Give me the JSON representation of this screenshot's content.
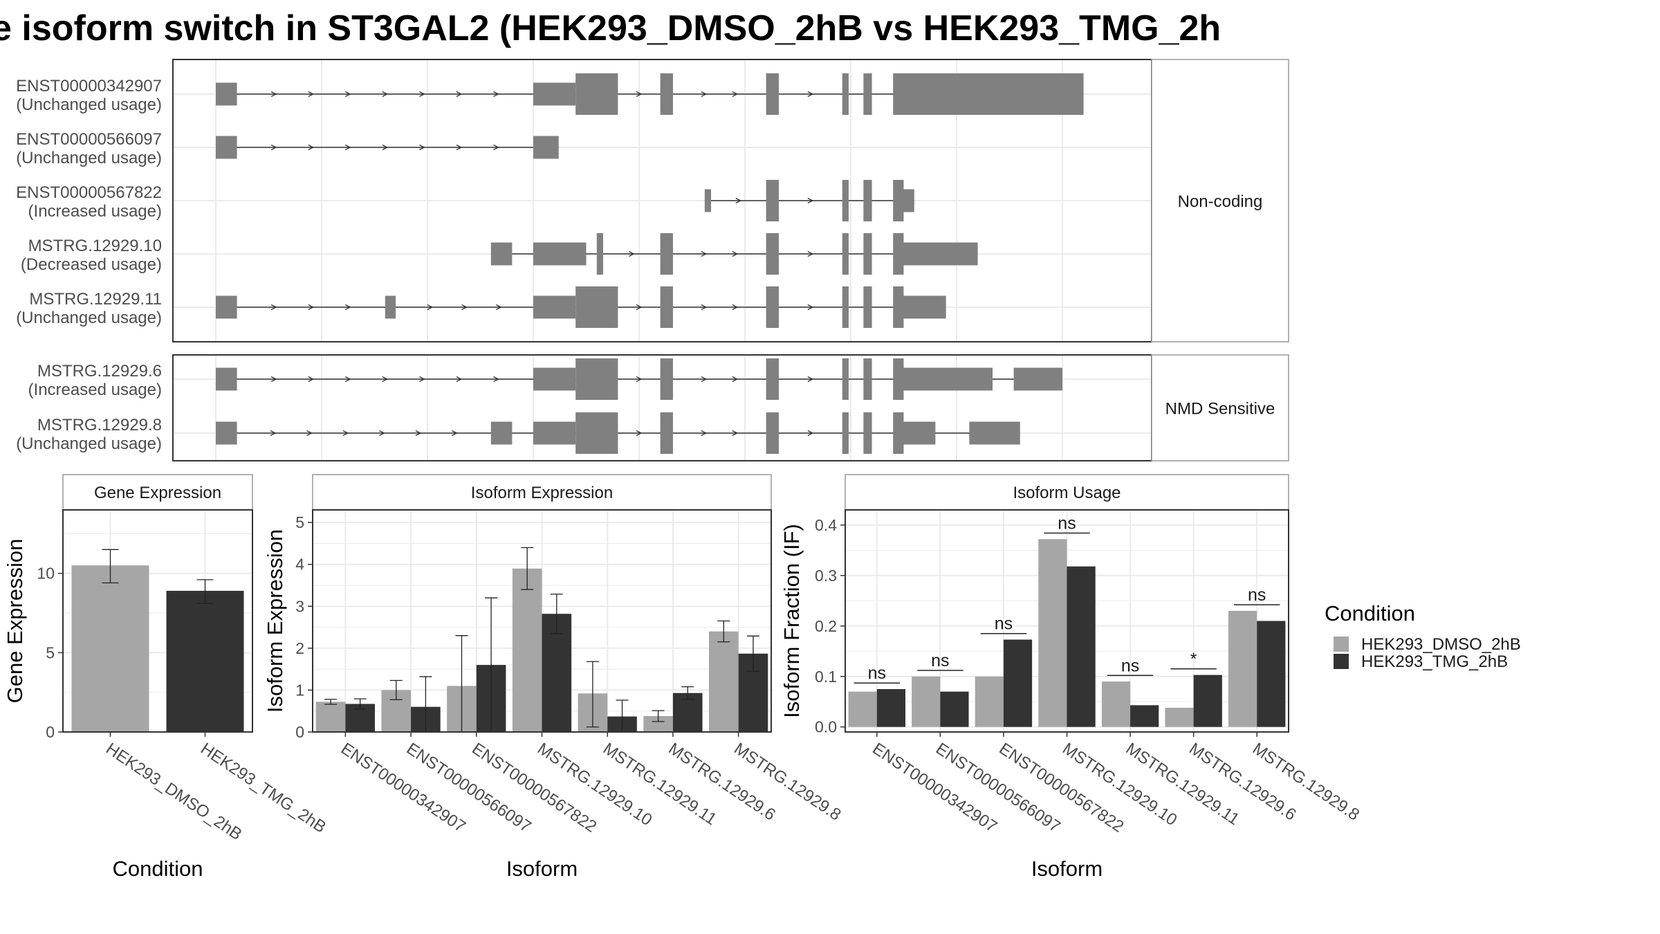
{
  "figure": {
    "title": "e isoform switch in ST3GAL2 (HEK293_DMSO_2hB vs HEK293_TMG_2h",
    "legend_title": "Condition",
    "conditions": [
      {
        "name": "HEK293_DMSO_2hB",
        "color": "#a6a6a6"
      },
      {
        "name": "HEK293_TMG_2hB",
        "color": "#333333"
      }
    ],
    "transcript_color": "#808080"
  },
  "chart_data": [
    {
      "type": "gene-structure",
      "facets": [
        {
          "label": "Non-coding",
          "tracks": [
            {
              "name": "ENST00000342907",
              "usage": "(Unchanged usage)",
              "exons": [
                [
                  0,
                  1,
                  "n"
                ],
                [
                  15,
                  17,
                  "n"
                ],
                [
                  17,
                  19,
                  "w"
                ],
                [
                  21,
                  21.6,
                  "w"
                ],
                [
                  26,
                  26.6,
                  "w"
                ],
                [
                  29.6,
                  29.9,
                  "w"
                ],
                [
                  30.6,
                  31,
                  "w"
                ],
                [
                  32,
                  32.5,
                  "w"
                ],
                [
                  32.5,
                  41,
                  "w"
                ]
              ]
            },
            {
              "name": "ENST00000566097",
              "usage": "(Unchanged usage)",
              "exons": [
                [
                  0,
                  1,
                  "n"
                ],
                [
                  15,
                  16.2,
                  "n"
                ]
              ]
            },
            {
              "name": "ENST00000567822",
              "usage": "(Increased usage)",
              "exons": [
                [
                  23.1,
                  23.4,
                  "n"
                ],
                [
                  26,
                  26.6,
                  "w"
                ],
                [
                  29.6,
                  29.9,
                  "w"
                ],
                [
                  30.6,
                  31,
                  "w"
                ],
                [
                  32,
                  32.5,
                  "w"
                ],
                [
                  32.5,
                  33,
                  "n"
                ]
              ]
            },
            {
              "name": "MSTRG.12929.10",
              "usage": "(Decreased usage)",
              "exons": [
                [
                  13,
                  14,
                  "n"
                ],
                [
                  15,
                  17.5,
                  "n"
                ],
                [
                  18,
                  18.3,
                  "w"
                ],
                [
                  21,
                  21.6,
                  "w"
                ],
                [
                  26,
                  26.6,
                  "w"
                ],
                [
                  29.6,
                  29.9,
                  "w"
                ],
                [
                  30.6,
                  31,
                  "w"
                ],
                [
                  32,
                  32.5,
                  "w"
                ],
                [
                  32.5,
                  36,
                  "n"
                ]
              ]
            },
            {
              "name": "MSTRG.12929.11",
              "usage": "(Unchanged usage)",
              "exons": [
                [
                  0,
                  1,
                  "n"
                ],
                [
                  8,
                  8.5,
                  "n"
                ],
                [
                  15,
                  17,
                  "n"
                ],
                [
                  17,
                  19,
                  "w"
                ],
                [
                  21,
                  21.6,
                  "w"
                ],
                [
                  26,
                  26.6,
                  "w"
                ],
                [
                  29.6,
                  29.9,
                  "w"
                ],
                [
                  30.6,
                  31,
                  "w"
                ],
                [
                  32,
                  32.5,
                  "w"
                ],
                [
                  32.5,
                  34.5,
                  "n"
                ]
              ]
            }
          ]
        },
        {
          "label": "NMD Sensitive",
          "tracks": [
            {
              "name": "MSTRG.12929.6",
              "usage": "(Increased usage)",
              "exons": [
                [
                  0,
                  1,
                  "n"
                ],
                [
                  15,
                  17,
                  "n"
                ],
                [
                  17,
                  19,
                  "w"
                ],
                [
                  21,
                  21.6,
                  "w"
                ],
                [
                  26,
                  26.6,
                  "w"
                ],
                [
                  29.6,
                  29.9,
                  "w"
                ],
                [
                  30.6,
                  31,
                  "w"
                ],
                [
                  32,
                  32.5,
                  "w"
                ],
                [
                  32.5,
                  36.7,
                  "n"
                ],
                [
                  37.7,
                  40,
                  "n"
                ]
              ]
            },
            {
              "name": "MSTRG.12929.8",
              "usage": "(Unchanged usage)",
              "exons": [
                [
                  0,
                  1,
                  "n"
                ],
                [
                  13,
                  14,
                  "n"
                ],
                [
                  15,
                  17,
                  "n"
                ],
                [
                  17,
                  19,
                  "w"
                ],
                [
                  21,
                  21.6,
                  "w"
                ],
                [
                  26,
                  26.6,
                  "w"
                ],
                [
                  29.6,
                  29.9,
                  "w"
                ],
                [
                  30.6,
                  31,
                  "w"
                ],
                [
                  32,
                  32.5,
                  "w"
                ],
                [
                  32.5,
                  34,
                  "n"
                ],
                [
                  35.6,
                  38,
                  "n"
                ]
              ]
            }
          ]
        }
      ]
    },
    {
      "type": "bar",
      "title": "Gene Expression",
      "xlabel": "Condition",
      "ylabel": "Gene Expression",
      "ylim": [
        0,
        14
      ],
      "yticks": [
        0,
        5,
        10
      ],
      "categories": [
        "HEK293_DMSO_2hB",
        "HEK293_TMG_2hB"
      ],
      "values": [
        10.5,
        8.9
      ],
      "errors": [
        [
          9.4,
          11.5
        ],
        [
          8.1,
          9.6
        ]
      ]
    },
    {
      "type": "bar",
      "title": "Isoform Expression",
      "xlabel": "Isoform",
      "ylabel": "Isoform Expression",
      "ylim": [
        0,
        5.3
      ],
      "yticks": [
        0,
        1,
        2,
        3,
        4,
        5
      ],
      "categories": [
        "ENST00000342907",
        "ENST00000566097",
        "ENST00000567822",
        "MSTRG.12929.10",
        "MSTRG.12929.11",
        "MSTRG.12929.6",
        "MSTRG.12929.8"
      ],
      "series": [
        {
          "name": "HEK293_DMSO_2hB",
          "values": [
            0.72,
            1.0,
            1.1,
            3.9,
            0.92,
            0.38,
            2.4
          ],
          "errors": [
            [
              0.66,
              0.78
            ],
            [
              0.77,
              1.23
            ],
            [
              0.0,
              2.3
            ],
            [
              3.4,
              4.4
            ],
            [
              0.12,
              1.68
            ],
            [
              0.25,
              0.51
            ],
            [
              2.15,
              2.65
            ]
          ]
        },
        {
          "name": "HEK293_TMG_2hB",
          "values": [
            0.67,
            0.6,
            1.6,
            2.82,
            0.37,
            0.93,
            1.87
          ],
          "errors": [
            [
              0.55,
              0.79
            ],
            [
              0.0,
              1.32
            ],
            [
              0.0,
              3.2
            ],
            [
              2.35,
              3.29
            ],
            [
              0.0,
              0.76
            ],
            [
              0.78,
              1.08
            ],
            [
              1.45,
              2.29
            ]
          ]
        }
      ]
    },
    {
      "type": "bar",
      "title": "Isoform Usage",
      "xlabel": "Isoform",
      "ylabel": "Isoform Fraction (IF)",
      "ylim": [
        -0.01,
        0.43
      ],
      "yticks": [
        0.0,
        0.1,
        0.2,
        0.3,
        0.4
      ],
      "categories": [
        "ENST00000342907",
        "ENST00000566097",
        "ENST00000567822",
        "MSTRG.12929.10",
        "MSTRG.12929.11",
        "MSTRG.12929.6",
        "MSTRG.12929.8"
      ],
      "series": [
        {
          "name": "HEK293_DMSO_2hB",
          "values": [
            0.07,
            0.1,
            0.1,
            0.372,
            0.09,
            0.038,
            0.23
          ]
        },
        {
          "name": "HEK293_TMG_2hB",
          "values": [
            0.075,
            0.07,
            0.173,
            0.318,
            0.043,
            0.103,
            0.21
          ]
        }
      ],
      "significance": [
        "ns",
        "ns",
        "ns",
        "ns",
        "ns",
        "*",
        "ns"
      ]
    }
  ]
}
